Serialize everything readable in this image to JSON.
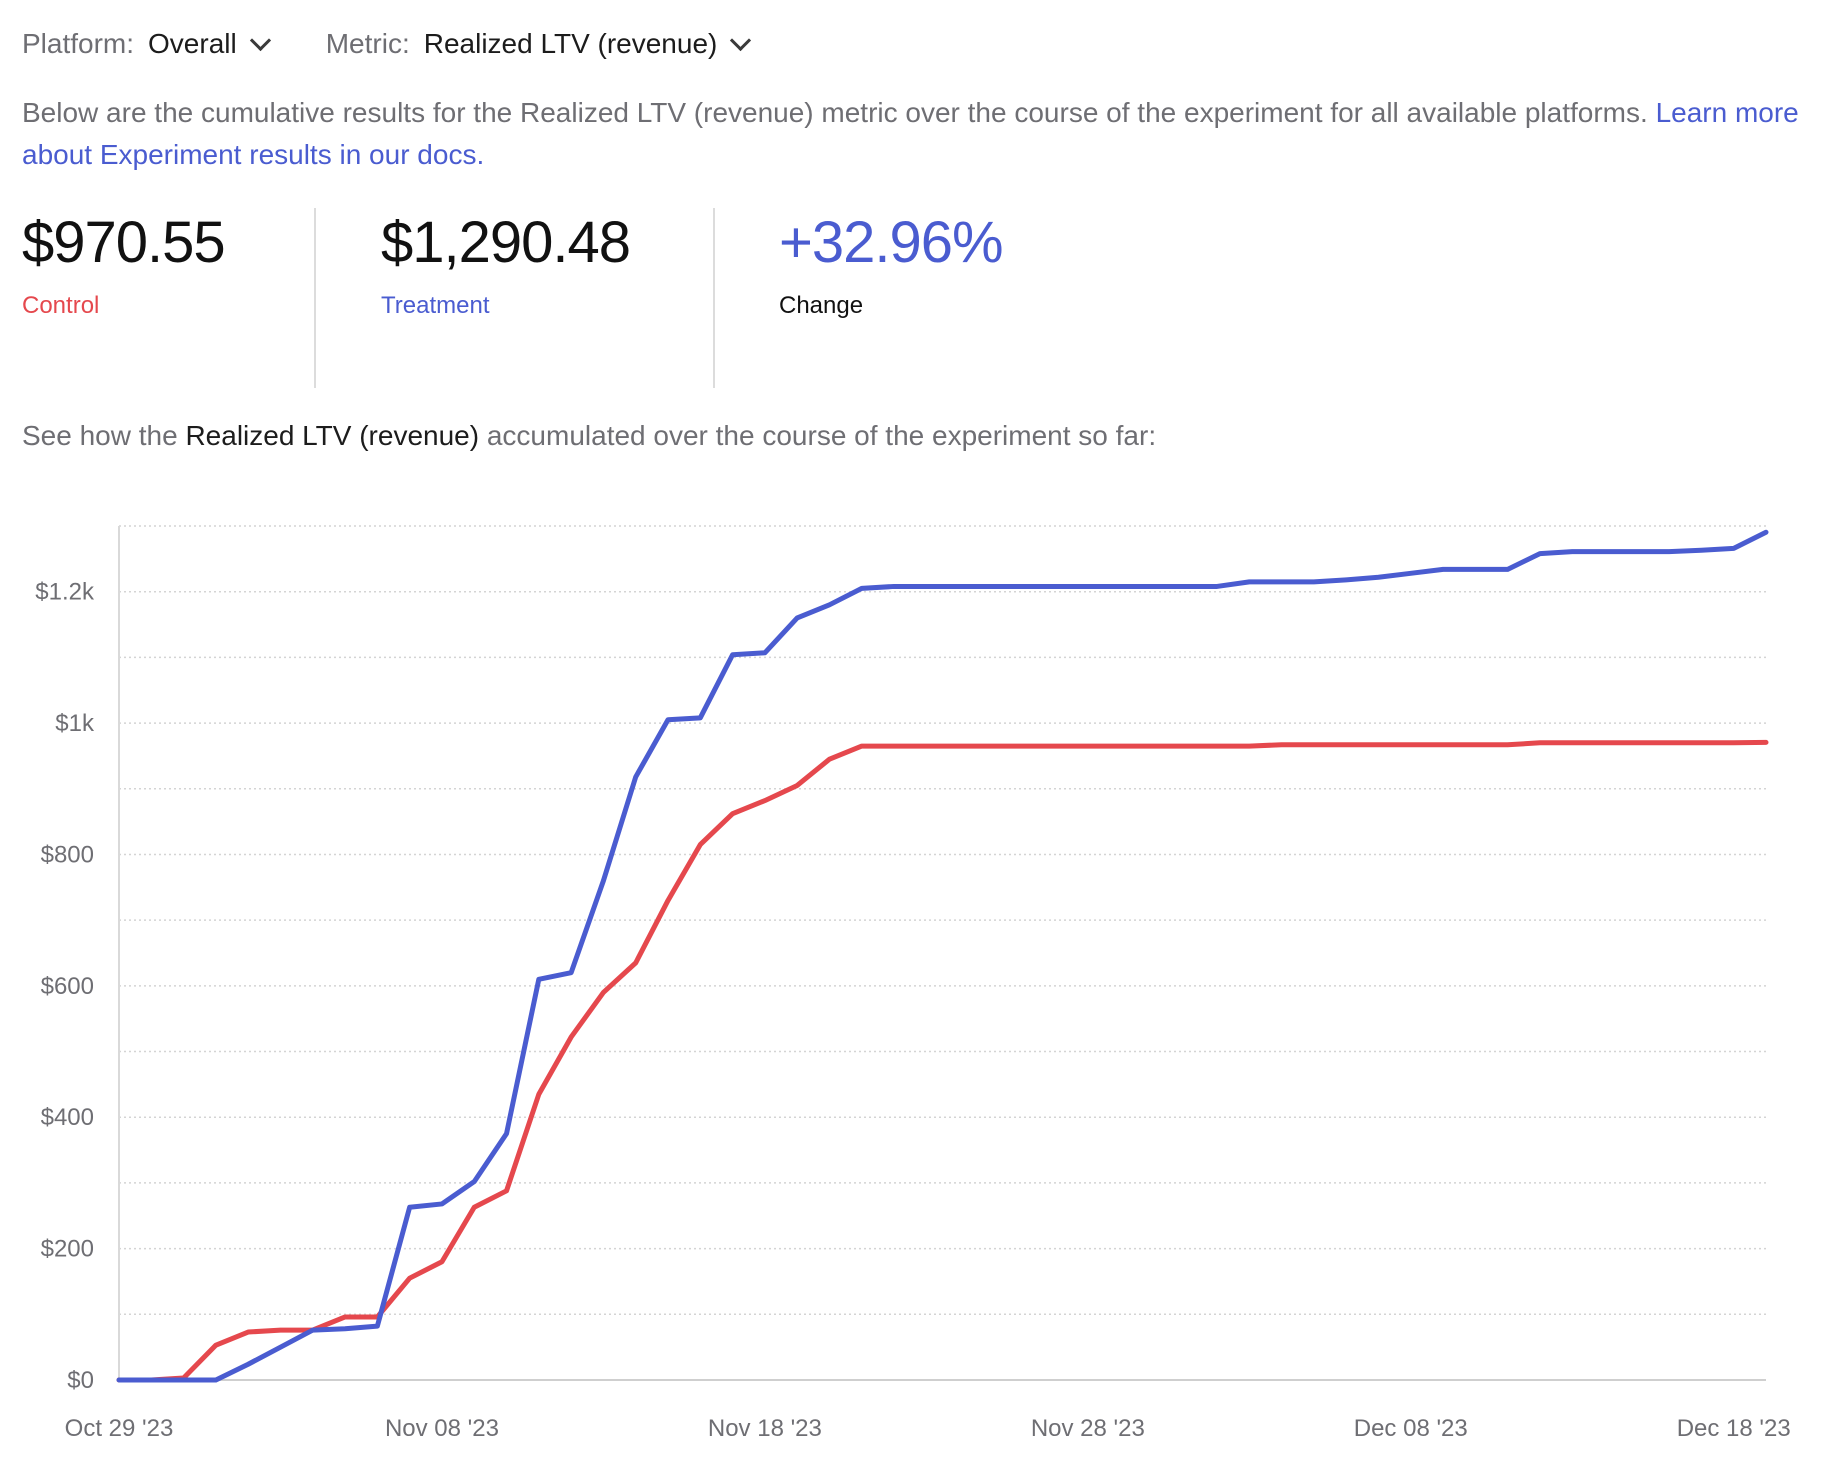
{
  "filters": {
    "platform": {
      "label": "Platform:",
      "value": "Overall"
    },
    "metric": {
      "label": "Metric:",
      "value": "Realized LTV (revenue)"
    }
  },
  "description": {
    "text": "Below are the cumulative results for the Realized LTV (revenue) metric over the course of the experiment for all available platforms.",
    "link_text": "Learn more about Experiment results in our docs."
  },
  "stats": {
    "control": {
      "value": "$970.55",
      "label": "Control"
    },
    "treatment": {
      "value": "$1,290.48",
      "label": "Treatment"
    },
    "change": {
      "value": "+32.96%",
      "label": "Change"
    }
  },
  "chart_intro": {
    "prefix": "See how the",
    "metric": "Realized LTV (revenue)",
    "suffix": "accumulated over the course of the experiment so far:"
  },
  "colors": {
    "control": "#e5484d",
    "treatment": "#4a5cd0",
    "muted_text": "#6e6e73",
    "grid": "#d4d4d4"
  },
  "chart_data": {
    "type": "line",
    "title": "",
    "xlabel": "",
    "ylabel": "",
    "ylim": [
      0,
      1300
    ],
    "grid": true,
    "legend": "none",
    "x_start_date": "Oct 29 '23",
    "x": [
      "Oct 29 '23",
      "Oct 30 '23",
      "Oct 31 '23",
      "Nov 01 '23",
      "Nov 02 '23",
      "Nov 03 '23",
      "Nov 04 '23",
      "Nov 05 '23",
      "Nov 06 '23",
      "Nov 07 '23",
      "Nov 08 '23",
      "Nov 09 '23",
      "Nov 10 '23",
      "Nov 11 '23",
      "Nov 12 '23",
      "Nov 13 '23",
      "Nov 14 '23",
      "Nov 15 '23",
      "Nov 16 '23",
      "Nov 17 '23",
      "Nov 18 '23",
      "Nov 19 '23",
      "Nov 20 '23",
      "Nov 21 '23",
      "Nov 22 '23",
      "Nov 23 '23",
      "Nov 24 '23",
      "Nov 25 '23",
      "Nov 26 '23",
      "Nov 27 '23",
      "Nov 28 '23",
      "Nov 29 '23",
      "Nov 30 '23",
      "Dec 01 '23",
      "Dec 02 '23",
      "Dec 03 '23",
      "Dec 04 '23",
      "Dec 05 '23",
      "Dec 06 '23",
      "Dec 07 '23",
      "Dec 08 '23",
      "Dec 09 '23",
      "Dec 10 '23",
      "Dec 11 '23",
      "Dec 12 '23",
      "Dec 13 '23",
      "Dec 14 '23",
      "Dec 15 '23",
      "Dec 16 '23",
      "Dec 17 '23",
      "Dec 18 '23",
      "Dec 19 '23"
    ],
    "x_ticks": [
      "Oct 29 '23",
      "Nov 08 '23",
      "Nov 18 '23",
      "Nov 28 '23",
      "Dec 08 '23",
      "Dec 18 '23"
    ],
    "y_ticks": [
      0,
      200,
      400,
      600,
      800,
      1000,
      1200
    ],
    "y_tick_labels": [
      "$0",
      "$200",
      "$400",
      "$600",
      "$800",
      "$1k",
      "$1.2k"
    ],
    "series": [
      {
        "name": "Control",
        "color": "#e5484d",
        "values": [
          0,
          0,
          3,
          53,
          73,
          76,
          76,
          96,
          96,
          155,
          180,
          263,
          288,
          435,
          522,
          590,
          635,
          730,
          815,
          862,
          882,
          905,
          945,
          965,
          965,
          965,
          965,
          965,
          965,
          965,
          965,
          965,
          965,
          965,
          965,
          965,
          967,
          967,
          967,
          967,
          967,
          967,
          967,
          967,
          970,
          970,
          970,
          970,
          970,
          970,
          970,
          970.55
        ]
      },
      {
        "name": "Treatment",
        "color": "#4a5cd0",
        "values": [
          0,
          0,
          0,
          0,
          24,
          50,
          76,
          78,
          82,
          263,
          268,
          302,
          375,
          610,
          620,
          760,
          918,
          1005,
          1008,
          1104,
          1107,
          1160,
          1180,
          1205,
          1208,
          1208,
          1208,
          1208,
          1208,
          1208,
          1208,
          1208,
          1208,
          1208,
          1208,
          1215,
          1215,
          1215,
          1218,
          1222,
          1228,
          1234,
          1234,
          1234,
          1258,
          1261,
          1261,
          1261,
          1261,
          1263,
          1266,
          1290.48
        ]
      }
    ]
  }
}
